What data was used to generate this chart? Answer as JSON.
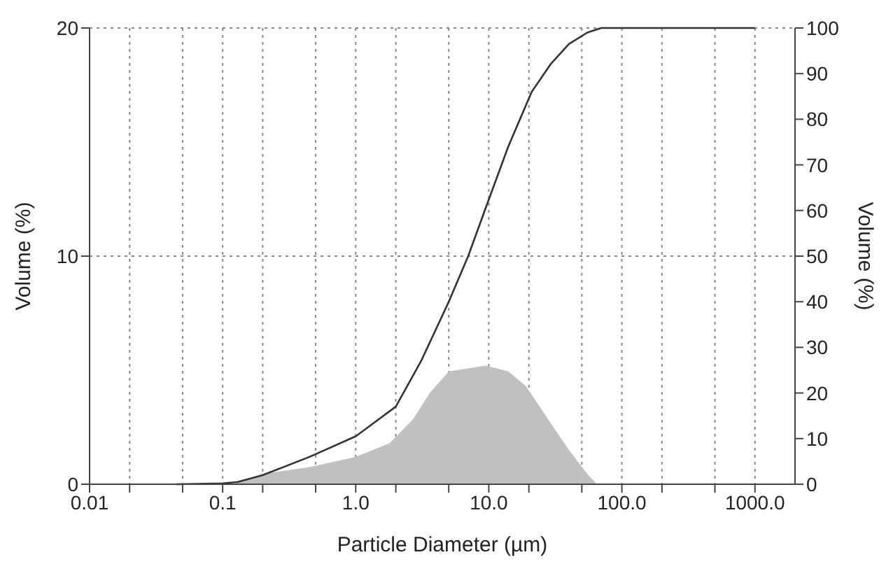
{
  "chart_data": {
    "type": "area",
    "xlabel": "Particle Diameter (µm)",
    "ylabel": "Volume (%)",
    "y2label": "Volume (%)",
    "log": "x",
    "grid": true,
    "legend": false,
    "marker": "none",
    "line_style": "solid",
    "xlim": [
      0.01,
      2000
    ],
    "xticks": [
      {
        "value": 0.01,
        "label": "0.01"
      },
      {
        "value": 0.02,
        "label": null
      },
      {
        "value": 0.05,
        "label": null
      },
      {
        "value": 0.1,
        "label": "0.1"
      },
      {
        "value": 0.2,
        "label": null
      },
      {
        "value": 0.5,
        "label": null
      },
      {
        "value": 1,
        "label": "1.0"
      },
      {
        "value": 2,
        "label": null
      },
      {
        "value": 5,
        "label": null
      },
      {
        "value": 10,
        "label": "10.0"
      },
      {
        "value": 20,
        "label": null
      },
      {
        "value": 50,
        "label": null
      },
      {
        "value": 100,
        "label": "100.0"
      },
      {
        "value": 200,
        "label": null
      },
      {
        "value": 500,
        "label": null
      },
      {
        "value": 1000,
        "label": "1000.0"
      }
    ],
    "ylim": [
      0,
      20
    ],
    "yticks": [
      0,
      10,
      20
    ],
    "y2lim": [
      0,
      100
    ],
    "y2ticks": [
      0,
      10,
      20,
      30,
      40,
      50,
      60,
      70,
      80,
      90,
      100
    ],
    "series": [
      {
        "color": "#c0c0c0",
        "x": [
          0.12,
          0.2,
          0.45,
          1.0,
          1.8,
          2.7,
          3.6,
          5,
          9.5,
          14,
          19,
          29,
          40,
          55,
          65
        ],
        "values": [
          0,
          0.45,
          0.75,
          1.2,
          1.8,
          2.85,
          4.0,
          4.95,
          5.2,
          4.95,
          4.3,
          2.7,
          1.5,
          0.45,
          0
        ]
      },
      {
        "type": "line",
        "axis": "y2",
        "color": "#333333",
        "x": [
          0.045,
          0.1,
          0.13,
          0.2,
          0.45,
          1.0,
          2,
          3.1,
          5,
          7,
          9.6,
          14,
          21,
          29,
          40,
          55,
          70,
          1000
        ],
        "values": [
          0,
          0.2,
          0.5,
          2,
          6,
          10.5,
          17,
          27,
          40,
          50,
          61,
          74,
          86,
          92,
          96.5,
          99,
          100,
          100
        ]
      }
    ]
  }
}
